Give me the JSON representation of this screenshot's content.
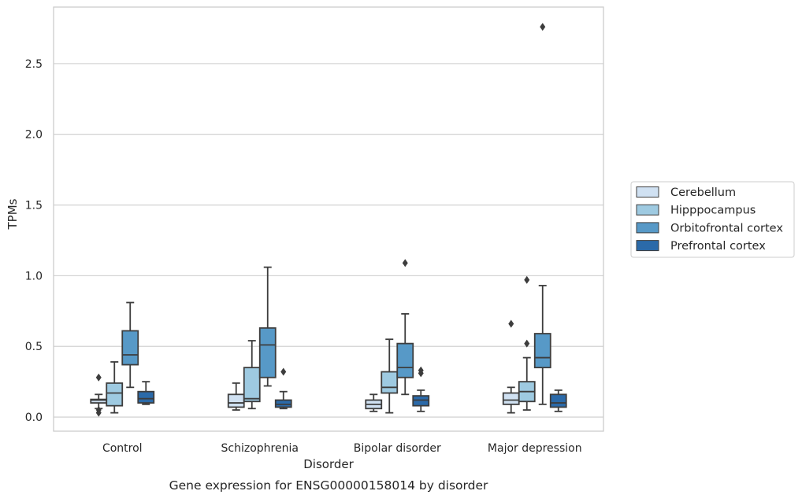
{
  "chart_data": {
    "type": "box",
    "xlabel": "Disorder",
    "ylabel": "TPMs",
    "caption": "Gene expression for ENSG00000158014 by disorder",
    "categories": [
      "Control",
      "Schizophrenia",
      "Bipolar disorder",
      "Major depression"
    ],
    "ylim": [
      -0.1,
      2.9
    ],
    "yticks": [
      0.0,
      0.5,
      1.0,
      1.5,
      2.0,
      2.5
    ],
    "ytick_labels": [
      "0.0",
      "0.5",
      "1.0",
      "1.5",
      "2.0",
      "2.5"
    ],
    "grid": "horizontal",
    "legend": {
      "placement": "right",
      "entries": [
        "Cerebellum",
        "Hipppocampus",
        "Orbitofrontal cortex",
        "Prefrontal cortex"
      ]
    },
    "series": [
      {
        "name": "Cerebellum",
        "color": "#d0e1f2",
        "boxes": [
          {
            "whislo": 0.06,
            "q1": 0.1,
            "med": 0.12,
            "q3": 0.125,
            "whishi": 0.16,
            "fliers": [
              0.28,
              0.05,
              0.03
            ]
          },
          {
            "whislo": 0.05,
            "q1": 0.07,
            "med": 0.1,
            "q3": 0.16,
            "whishi": 0.24,
            "fliers": []
          },
          {
            "whislo": 0.04,
            "q1": 0.06,
            "med": 0.09,
            "q3": 0.12,
            "whishi": 0.16,
            "fliers": []
          },
          {
            "whislo": 0.03,
            "q1": 0.09,
            "med": 0.12,
            "q3": 0.17,
            "whishi": 0.21,
            "fliers": [
              0.66
            ]
          }
        ]
      },
      {
        "name": "Hipppocampus",
        "color": "#9ecae1",
        "boxes": [
          {
            "whislo": 0.03,
            "q1": 0.08,
            "med": 0.17,
            "q3": 0.24,
            "whishi": 0.39,
            "fliers": []
          },
          {
            "whislo": 0.06,
            "q1": 0.11,
            "med": 0.13,
            "q3": 0.35,
            "whishi": 0.54,
            "fliers": []
          },
          {
            "whislo": 0.03,
            "q1": 0.17,
            "med": 0.21,
            "q3": 0.32,
            "whishi": 0.55,
            "fliers": []
          },
          {
            "whislo": 0.05,
            "q1": 0.11,
            "med": 0.18,
            "q3": 0.25,
            "whishi": 0.42,
            "fliers": [
              0.52,
              0.97
            ]
          }
        ]
      },
      {
        "name": "Orbitofrontal cortex",
        "color": "#5799c7",
        "boxes": [
          {
            "whislo": 0.21,
            "q1": 0.37,
            "med": 0.44,
            "q3": 0.61,
            "whishi": 0.81,
            "fliers": []
          },
          {
            "whislo": 0.22,
            "q1": 0.28,
            "med": 0.51,
            "q3": 0.63,
            "whishi": 1.06,
            "fliers": []
          },
          {
            "whislo": 0.16,
            "q1": 0.28,
            "med": 0.35,
            "q3": 0.52,
            "whishi": 0.73,
            "fliers": [
              1.09
            ]
          },
          {
            "whislo": 0.09,
            "q1": 0.35,
            "med": 0.42,
            "q3": 0.59,
            "whishi": 0.93,
            "fliers": [
              2.76
            ]
          }
        ]
      },
      {
        "name": "Prefrontal cortex",
        "color": "#2b6aa9",
        "boxes": [
          {
            "whislo": 0.09,
            "q1": 0.1,
            "med": 0.13,
            "q3": 0.18,
            "whishi": 0.25,
            "fliers": []
          },
          {
            "whislo": 0.06,
            "q1": 0.07,
            "med": 0.09,
            "q3": 0.12,
            "whishi": 0.18,
            "fliers": [
              0.32
            ]
          },
          {
            "whislo": 0.04,
            "q1": 0.08,
            "med": 0.12,
            "q3": 0.15,
            "whishi": 0.19,
            "fliers": [
              0.31,
              0.33
            ]
          },
          {
            "whislo": 0.04,
            "q1": 0.07,
            "med": 0.1,
            "q3": 0.16,
            "whishi": 0.19,
            "fliers": []
          }
        ]
      }
    ]
  }
}
